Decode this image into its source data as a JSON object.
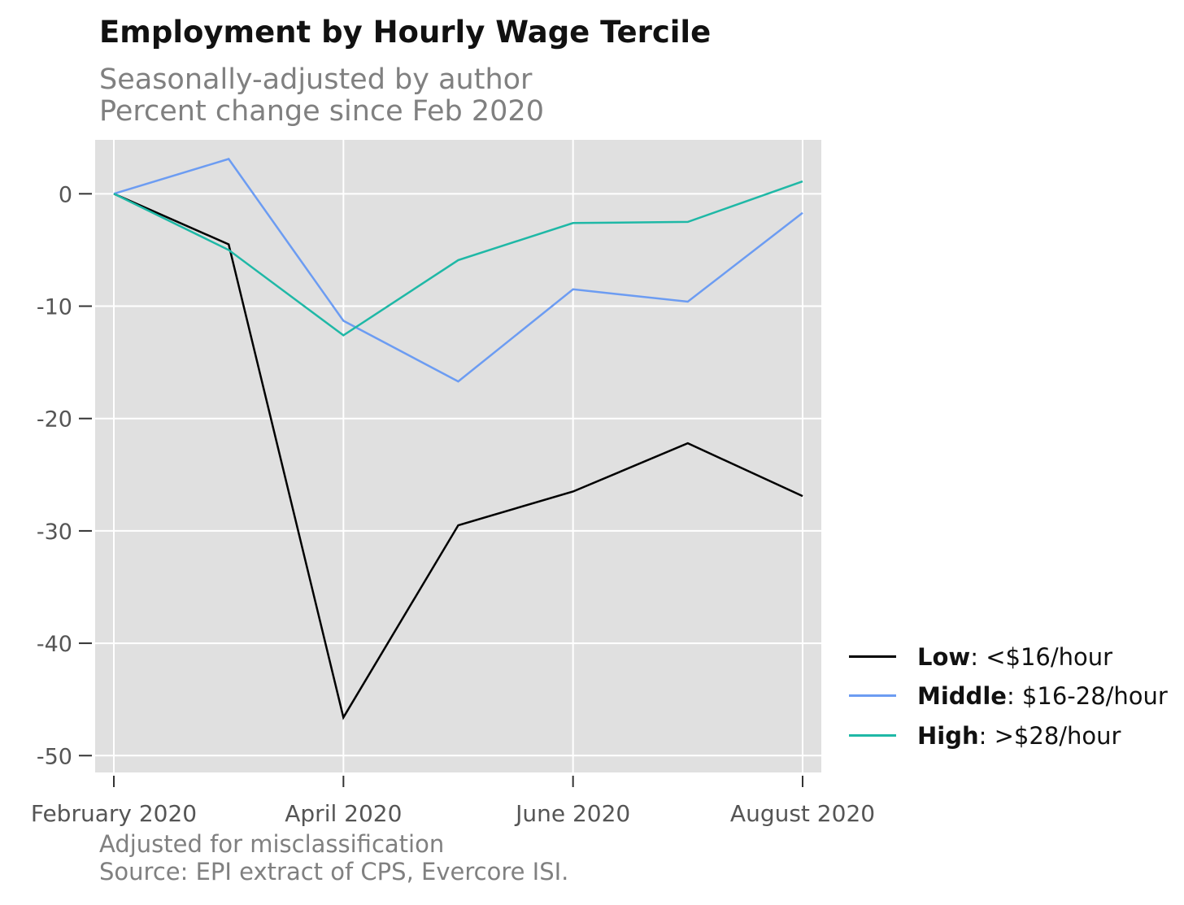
{
  "title": "Employment by Hourly Wage Tercile",
  "subtitle_lines": [
    "Seasonally-adjusted by author",
    "Percent change since Feb 2020"
  ],
  "caption_lines": [
    "Adjusted for misclassification",
    "Source: EPI extract of CPS, Evercore ISI."
  ],
  "colors": {
    "panel": "#e0e0e0",
    "grid": "#ffffff",
    "tick_text": "#555555"
  },
  "legend": [
    {
      "bold": "Low",
      "rest": ": <$16/hour"
    },
    {
      "bold": "Middle",
      "rest": ": $16-28/hour"
    },
    {
      "bold": "High",
      "rest": ": >$28/hour"
    }
  ],
  "chart_data": {
    "type": "line",
    "title": "Employment by Hourly Wage Tercile",
    "x": [
      "2020-02",
      "2020-03",
      "2020-04",
      "2020-05",
      "2020-06",
      "2020-07",
      "2020-08"
    ],
    "x_tick_labels": [
      "February 2020",
      "April 2020",
      "June 2020",
      "August 2020"
    ],
    "x_tick_positions": [
      "2020-02",
      "2020-04",
      "2020-06",
      "2020-08"
    ],
    "y_ticks": [
      0,
      -10,
      -20,
      -30,
      -40,
      -50
    ],
    "ylim": [
      -51.5,
      4.8
    ],
    "grid": true,
    "legend_position": "right",
    "series": [
      {
        "name": "Low: <$16/hour",
        "color": "#000000",
        "values": [
          0,
          -4.5,
          -46.6,
          -29.5,
          -26.5,
          -22.2,
          -26.9
        ]
      },
      {
        "name": "Middle: $16-28/hour",
        "color": "#6c9cf2",
        "values": [
          0,
          3.1,
          -11.3,
          -16.7,
          -8.5,
          -9.6,
          -1.7
        ]
      },
      {
        "name": "High: >$28/hour",
        "color": "#1fb8a6",
        "values": [
          0,
          -5.0,
          -12.6,
          -5.9,
          -2.6,
          -2.5,
          1.1
        ]
      }
    ]
  }
}
